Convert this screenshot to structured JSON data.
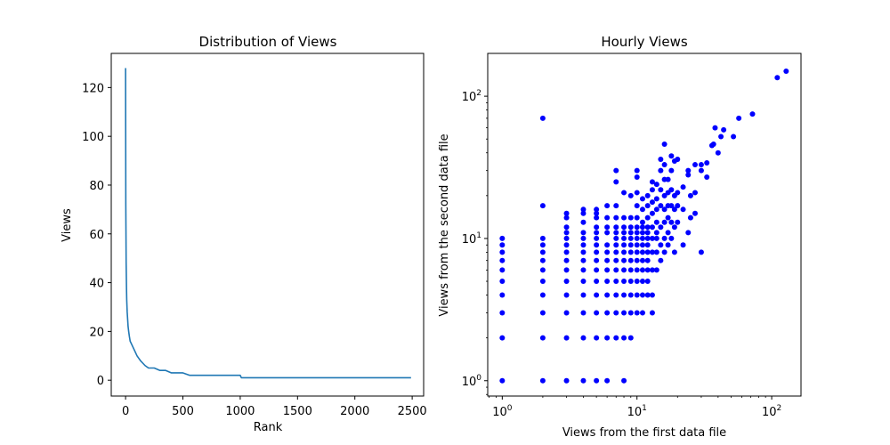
{
  "chart_data": [
    {
      "type": "line",
      "title": "Distribution of Views",
      "xlabel": "Rank",
      "ylabel": "Views",
      "xlim": [
        -125,
        2600
      ],
      "ylim": [
        -6.5,
        134
      ],
      "xticks": [
        0,
        500,
        1000,
        1500,
        2000,
        2500
      ],
      "yticks": [
        0,
        20,
        40,
        60,
        80,
        100,
        120
      ],
      "grid": false,
      "color": "#1f77b4",
      "series": [
        {
          "x": [
            0,
            2,
            5,
            8,
            10,
            14,
            18,
            22,
            27,
            33,
            40,
            50,
            60,
            70,
            80,
            90,
            100,
            115,
            130,
            150,
            170,
            200,
            250,
            300,
            350,
            400,
            450,
            500,
            560,
            600,
            700,
            800,
            900,
            1000,
            1010,
            1100,
            1300,
            1500,
            1700,
            1900,
            2100,
            2300,
            2490
          ],
          "y": [
            128,
            72,
            48,
            38,
            33,
            28,
            25,
            22,
            20,
            18,
            16,
            15,
            14,
            13,
            12,
            11,
            10,
            9,
            8,
            7,
            6,
            5,
            5,
            4,
            4,
            3,
            3,
            3,
            2,
            2,
            2,
            2,
            2,
            2,
            1,
            1,
            1,
            1,
            1,
            1,
            1,
            1,
            1
          ]
        }
      ]
    },
    {
      "type": "scatter",
      "title": "Hourly Views",
      "xlabel": "Views from the first data file",
      "ylabel": "Views from the second data file",
      "xscale": "log",
      "yscale": "log",
      "xlim": [
        0.78,
        165
      ],
      "ylim": [
        0.78,
        200
      ],
      "xticks": [
        1,
        10,
        100
      ],
      "yticks": [
        1,
        10,
        100
      ],
      "tick_base": "10",
      "tick_exponents": [
        "0",
        "1",
        "2"
      ],
      "grid": false,
      "color": "#0000ff",
      "points": [
        [
          1,
          1
        ],
        [
          1,
          2
        ],
        [
          1,
          3
        ],
        [
          1,
          4
        ],
        [
          1,
          5
        ],
        [
          1,
          6
        ],
        [
          1,
          7
        ],
        [
          1,
          8
        ],
        [
          1,
          9
        ],
        [
          1,
          10
        ],
        [
          2,
          1
        ],
        [
          2,
          2
        ],
        [
          2,
          3
        ],
        [
          2,
          4
        ],
        [
          2,
          5
        ],
        [
          2,
          6
        ],
        [
          2,
          7
        ],
        [
          2,
          8
        ],
        [
          2,
          9
        ],
        [
          2,
          10
        ],
        [
          2,
          17
        ],
        [
          2,
          70
        ],
        [
          3,
          1
        ],
        [
          3,
          2
        ],
        [
          3,
          3
        ],
        [
          3,
          4
        ],
        [
          3,
          5
        ],
        [
          3,
          6
        ],
        [
          3,
          7
        ],
        [
          3,
          8
        ],
        [
          3,
          9
        ],
        [
          3,
          10
        ],
        [
          3,
          11
        ],
        [
          3,
          12
        ],
        [
          3,
          14
        ],
        [
          3,
          15
        ],
        [
          4,
          1
        ],
        [
          4,
          2
        ],
        [
          4,
          3
        ],
        [
          4,
          4
        ],
        [
          4,
          5
        ],
        [
          4,
          6
        ],
        [
          4,
          7
        ],
        [
          4,
          8
        ],
        [
          4,
          9
        ],
        [
          4,
          10
        ],
        [
          4,
          11
        ],
        [
          4,
          13
        ],
        [
          4,
          15
        ],
        [
          4,
          16
        ],
        [
          5,
          1
        ],
        [
          5,
          2
        ],
        [
          5,
          3
        ],
        [
          5,
          4
        ],
        [
          5,
          5
        ],
        [
          5,
          6
        ],
        [
          5,
          7
        ],
        [
          5,
          8
        ],
        [
          5,
          9
        ],
        [
          5,
          10
        ],
        [
          5,
          11
        ],
        [
          5,
          12
        ],
        [
          5,
          14
        ],
        [
          5,
          15
        ],
        [
          5,
          16
        ],
        [
          6,
          1
        ],
        [
          6,
          2
        ],
        [
          6,
          3
        ],
        [
          6,
          4
        ],
        [
          6,
          5
        ],
        [
          6,
          6
        ],
        [
          6,
          7
        ],
        [
          6,
          8
        ],
        [
          6,
          9
        ],
        [
          6,
          11
        ],
        [
          6,
          12
        ],
        [
          6,
          14
        ],
        [
          6,
          17
        ],
        [
          7,
          2
        ],
        [
          7,
          3
        ],
        [
          7,
          4
        ],
        [
          7,
          5
        ],
        [
          7,
          6
        ],
        [
          7,
          7
        ],
        [
          7,
          8
        ],
        [
          7,
          9
        ],
        [
          7,
          10
        ],
        [
          7,
          11
        ],
        [
          7,
          12
        ],
        [
          7,
          14
        ],
        [
          7,
          17
        ],
        [
          7,
          25
        ],
        [
          7,
          30
        ],
        [
          8,
          1
        ],
        [
          8,
          2
        ],
        [
          8,
          3
        ],
        [
          8,
          4
        ],
        [
          8,
          5
        ],
        [
          8,
          6
        ],
        [
          8,
          7
        ],
        [
          8,
          8
        ],
        [
          8,
          9
        ],
        [
          8,
          10
        ],
        [
          8,
          11
        ],
        [
          8,
          12
        ],
        [
          8,
          14
        ],
        [
          8,
          21
        ],
        [
          9,
          2
        ],
        [
          9,
          3
        ],
        [
          9,
          4
        ],
        [
          9,
          5
        ],
        [
          9,
          6
        ],
        [
          9,
          7
        ],
        [
          9,
          8
        ],
        [
          9,
          9
        ],
        [
          9,
          10
        ],
        [
          9,
          11
        ],
        [
          9,
          12
        ],
        [
          9,
          14
        ],
        [
          9,
          20
        ],
        [
          10,
          3
        ],
        [
          10,
          4
        ],
        [
          10,
          5
        ],
        [
          10,
          6
        ],
        [
          10,
          7
        ],
        [
          10,
          8
        ],
        [
          10,
          9
        ],
        [
          10,
          10
        ],
        [
          10,
          11
        ],
        [
          10,
          12
        ],
        [
          10,
          14
        ],
        [
          10,
          17
        ],
        [
          10,
          21
        ],
        [
          10,
          27
        ],
        [
          10,
          30
        ],
        [
          11,
          3
        ],
        [
          11,
          4
        ],
        [
          11,
          5
        ],
        [
          11,
          6
        ],
        [
          11,
          7
        ],
        [
          11,
          8
        ],
        [
          11,
          9
        ],
        [
          11,
          10
        ],
        [
          11,
          11
        ],
        [
          11,
          12
        ],
        [
          11,
          13
        ],
        [
          11,
          16
        ],
        [
          11,
          19
        ],
        [
          12,
          4
        ],
        [
          12,
          5
        ],
        [
          12,
          6
        ],
        [
          12,
          7
        ],
        [
          12,
          8
        ],
        [
          12,
          9
        ],
        [
          12,
          10
        ],
        [
          12,
          11
        ],
        [
          12,
          12
        ],
        [
          12,
          14
        ],
        [
          12,
          17
        ],
        [
          12,
          20
        ],
        [
          13,
          3
        ],
        [
          13,
          4
        ],
        [
          13,
          6
        ],
        [
          13,
          8
        ],
        [
          13,
          10
        ],
        [
          13,
          12
        ],
        [
          13,
          15
        ],
        [
          13,
          18
        ],
        [
          13,
          22
        ],
        [
          13,
          25
        ],
        [
          14,
          6
        ],
        [
          14,
          8
        ],
        [
          14,
          10
        ],
        [
          14,
          11
        ],
        [
          14,
          13
        ],
        [
          14,
          16
        ],
        [
          14,
          19
        ],
        [
          14,
          24
        ],
        [
          15,
          7
        ],
        [
          15,
          9
        ],
        [
          15,
          12
        ],
        [
          15,
          17
        ],
        [
          15,
          22
        ],
        [
          15,
          30
        ],
        [
          15,
          36
        ],
        [
          16,
          8
        ],
        [
          16,
          10
        ],
        [
          16,
          13
        ],
        [
          16,
          16
        ],
        [
          16,
          20
        ],
        [
          16,
          26
        ],
        [
          16,
          33
        ],
        [
          16,
          46
        ],
        [
          17,
          9
        ],
        [
          17,
          11
        ],
        [
          17,
          14
        ],
        [
          17,
          17
        ],
        [
          17,
          21
        ],
        [
          17,
          26
        ],
        [
          18,
          10
        ],
        [
          18,
          13
        ],
        [
          18,
          17
        ],
        [
          18,
          22
        ],
        [
          18,
          30
        ],
        [
          18,
          38
        ],
        [
          19,
          8
        ],
        [
          19,
          12
        ],
        [
          19,
          16
        ],
        [
          19,
          20
        ],
        [
          19,
          35
        ],
        [
          20,
          13
        ],
        [
          20,
          17
        ],
        [
          20,
          21
        ],
        [
          20,
          36
        ],
        [
          22,
          9
        ],
        [
          22,
          16
        ],
        [
          22,
          23
        ],
        [
          24,
          11
        ],
        [
          24,
          28
        ],
        [
          24,
          30
        ],
        [
          25,
          14
        ],
        [
          25,
          20
        ],
        [
          27,
          15
        ],
        [
          27,
          21
        ],
        [
          27,
          33
        ],
        [
          30,
          8
        ],
        [
          30,
          30
        ],
        [
          30,
          33
        ],
        [
          33,
          27
        ],
        [
          33,
          34
        ],
        [
          36,
          45
        ],
        [
          37,
          46
        ],
        [
          38,
          60
        ],
        [
          40,
          40
        ],
        [
          42,
          52
        ],
        [
          44,
          58
        ],
        [
          52,
          52
        ],
        [
          57,
          70
        ],
        [
          72,
          75
        ],
        [
          110,
          135
        ],
        [
          128,
          150
        ]
      ]
    }
  ]
}
